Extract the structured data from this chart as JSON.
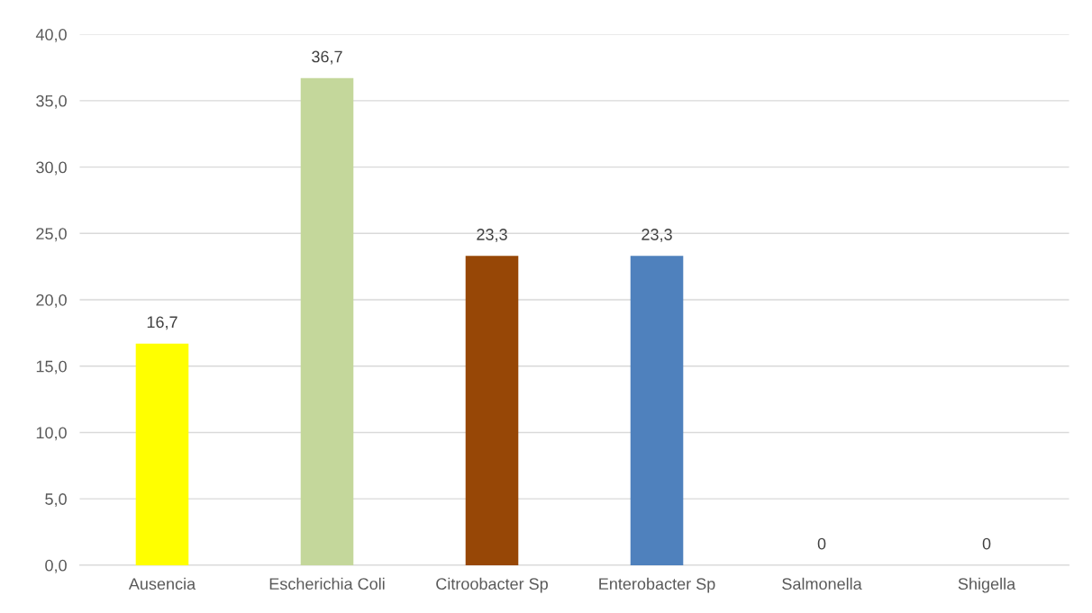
{
  "chart_data": {
    "type": "bar",
    "categories": [
      "Ausencia",
      "Escherichia Coli",
      "Citroobacter Sp",
      "Enterobacter Sp",
      "Salmonella",
      "Shigella"
    ],
    "values": [
      16.7,
      36.7,
      23.3,
      23.3,
      0,
      0
    ],
    "colors": [
      "#ffff00",
      "#c4d79b",
      "#974706",
      "#4f81bd",
      "#4f81bd",
      "#4f81bd"
    ],
    "value_labels": [
      "16,7",
      "36,7",
      "23,3",
      "23,3",
      "0",
      "0"
    ],
    "ylim": [
      0,
      40
    ],
    "yticks": [
      {
        "value": 0,
        "label": "0,0"
      },
      {
        "value": 5,
        "label": "5,0"
      },
      {
        "value": 10,
        "label": "10,0"
      },
      {
        "value": 15,
        "label": "15,0"
      },
      {
        "value": 20,
        "label": "20,0"
      },
      {
        "value": 25,
        "label": "25,0"
      },
      {
        "value": 30,
        "label": "30,0"
      },
      {
        "value": 35,
        "label": "35,0"
      },
      {
        "value": 40,
        "label": "40,0"
      }
    ],
    "grid": "y"
  }
}
